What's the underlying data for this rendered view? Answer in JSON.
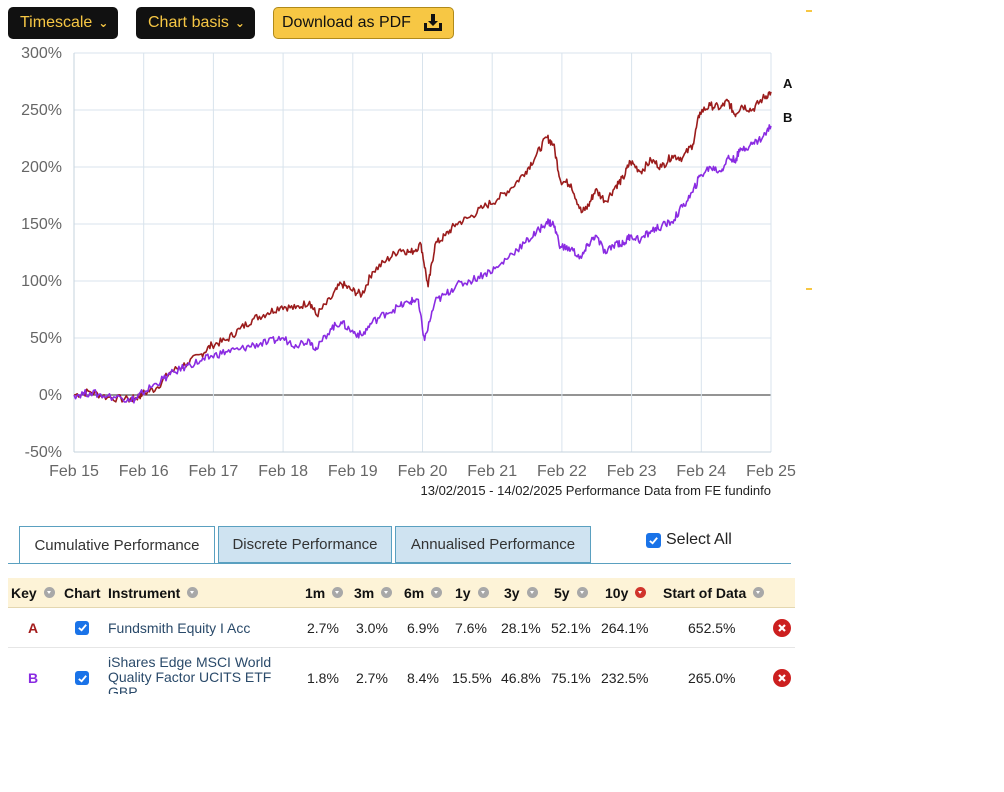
{
  "toolbar": {
    "timescale_label": "Timescale",
    "chart_basis_label": "Chart basis",
    "download_label": "Download as PDF"
  },
  "chart_data": {
    "type": "line",
    "x_ticks": [
      "Feb 15",
      "Feb 16",
      "Feb 17",
      "Feb 18",
      "Feb 19",
      "Feb 20",
      "Feb 21",
      "Feb 22",
      "Feb 23",
      "Feb 24",
      "Feb 25"
    ],
    "y_ticks": [
      "300%",
      "250%",
      "200%",
      "150%",
      "100%",
      "50%",
      "0%",
      "-50%"
    ],
    "ylim": [
      -50,
      300
    ],
    "xlim": [
      2015.12,
      2025.12
    ],
    "footnote": "13/02/2015 - 14/02/2025 Performance Data from FE fundinfo",
    "series": [
      {
        "key": "A",
        "color": "#9b1c1c",
        "points": [
          [
            2015.12,
            0
          ],
          [
            2015.35,
            3
          ],
          [
            2015.6,
            -2
          ],
          [
            2015.9,
            -4
          ],
          [
            2016.0,
            -3
          ],
          [
            2016.1,
            1
          ],
          [
            2016.3,
            6
          ],
          [
            2016.5,
            20
          ],
          [
            2016.75,
            28
          ],
          [
            2016.95,
            36
          ],
          [
            2017.1,
            44
          ],
          [
            2017.3,
            48
          ],
          [
            2017.5,
            58
          ],
          [
            2017.7,
            67
          ],
          [
            2017.9,
            72
          ],
          [
            2018.1,
            78
          ],
          [
            2018.3,
            76
          ],
          [
            2018.5,
            82
          ],
          [
            2018.6,
            70
          ],
          [
            2018.8,
            84
          ],
          [
            2018.95,
            98
          ],
          [
            2019.1,
            92
          ],
          [
            2019.25,
            88
          ],
          [
            2019.4,
            108
          ],
          [
            2019.6,
            118
          ],
          [
            2019.8,
            128
          ],
          [
            2019.95,
            125
          ],
          [
            2020.1,
            132
          ],
          [
            2020.2,
            95
          ],
          [
            2020.3,
            132
          ],
          [
            2020.45,
            140
          ],
          [
            2020.6,
            150
          ],
          [
            2020.8,
            156
          ],
          [
            2021.0,
            165
          ],
          [
            2021.2,
            172
          ],
          [
            2021.4,
            182
          ],
          [
            2021.6,
            196
          ],
          [
            2021.75,
            210
          ],
          [
            2021.9,
            226
          ],
          [
            2022.0,
            220
          ],
          [
            2022.1,
            188
          ],
          [
            2022.25,
            185
          ],
          [
            2022.4,
            160
          ],
          [
            2022.5,
            166
          ],
          [
            2022.6,
            180
          ],
          [
            2022.75,
            170
          ],
          [
            2022.9,
            184
          ],
          [
            2023.0,
            190
          ],
          [
            2023.1,
            205
          ],
          [
            2023.25,
            196
          ],
          [
            2023.4,
            206
          ],
          [
            2023.55,
            200
          ],
          [
            2023.7,
            210
          ],
          [
            2023.85,
            208
          ],
          [
            2024.0,
            220
          ],
          [
            2024.1,
            248
          ],
          [
            2024.25,
            254
          ],
          [
            2024.4,
            252
          ],
          [
            2024.5,
            258
          ],
          [
            2024.6,
            246
          ],
          [
            2024.7,
            254
          ],
          [
            2024.85,
            250
          ],
          [
            2025.0,
            260
          ],
          [
            2025.12,
            266
          ]
        ]
      },
      {
        "key": "B",
        "color": "#8a2be2",
        "points": [
          [
            2015.12,
            0
          ],
          [
            2015.35,
            2
          ],
          [
            2015.6,
            -1
          ],
          [
            2015.9,
            -3
          ],
          [
            2016.0,
            -4
          ],
          [
            2016.1,
            2
          ],
          [
            2016.3,
            10
          ],
          [
            2016.5,
            18
          ],
          [
            2016.75,
            26
          ],
          [
            2016.95,
            30
          ],
          [
            2017.1,
            34
          ],
          [
            2017.3,
            38
          ],
          [
            2017.5,
            40
          ],
          [
            2017.7,
            44
          ],
          [
            2017.9,
            46
          ],
          [
            2018.1,
            50
          ],
          [
            2018.3,
            44
          ],
          [
            2018.5,
            48
          ],
          [
            2018.6,
            40
          ],
          [
            2018.8,
            58
          ],
          [
            2018.95,
            64
          ],
          [
            2019.1,
            56
          ],
          [
            2019.25,
            52
          ],
          [
            2019.4,
            64
          ],
          [
            2019.6,
            72
          ],
          [
            2019.8,
            78
          ],
          [
            2019.95,
            82
          ],
          [
            2020.05,
            84
          ],
          [
            2020.15,
            48
          ],
          [
            2020.3,
            82
          ],
          [
            2020.45,
            88
          ],
          [
            2020.6,
            96
          ],
          [
            2020.8,
            100
          ],
          [
            2021.0,
            106
          ],
          [
            2021.2,
            112
          ],
          [
            2021.4,
            124
          ],
          [
            2021.6,
            134
          ],
          [
            2021.75,
            142
          ],
          [
            2021.9,
            152
          ],
          [
            2022.0,
            150
          ],
          [
            2022.1,
            130
          ],
          [
            2022.25,
            128
          ],
          [
            2022.4,
            120
          ],
          [
            2022.5,
            132
          ],
          [
            2022.6,
            140
          ],
          [
            2022.75,
            124
          ],
          [
            2022.9,
            134
          ],
          [
            2023.0,
            132
          ],
          [
            2023.1,
            140
          ],
          [
            2023.25,
            136
          ],
          [
            2023.4,
            144
          ],
          [
            2023.55,
            148
          ],
          [
            2023.7,
            152
          ],
          [
            2023.85,
            165
          ],
          [
            2024.0,
            178
          ],
          [
            2024.1,
            192
          ],
          [
            2024.25,
            200
          ],
          [
            2024.4,
            196
          ],
          [
            2024.5,
            208
          ],
          [
            2024.6,
            206
          ],
          [
            2024.7,
            216
          ],
          [
            2024.85,
            220
          ],
          [
            2025.0,
            226
          ],
          [
            2025.12,
            236
          ]
        ]
      }
    ]
  },
  "tabs": [
    {
      "label": "Cumulative Performance",
      "active": true
    },
    {
      "label": "Discrete Performance",
      "active": false
    },
    {
      "label": "Annualised Performance",
      "active": false
    }
  ],
  "select_all_label": "Select All",
  "table": {
    "headers": {
      "key": "Key",
      "chart": "Chart",
      "instrument": "Instrument",
      "m1": "1m",
      "m3": "3m",
      "m6": "6m",
      "y1": "1y",
      "y3": "3y",
      "y5": "5y",
      "y10": "10y",
      "start": "Start of Data"
    },
    "rows": [
      {
        "key": "A",
        "instrument": "Fundsmith Equity I Acc",
        "m1": "2.7%",
        "m3": "3.0%",
        "m6": "6.9%",
        "y1": "7.6%",
        "y3": "28.1%",
        "y5": "52.1%",
        "y10": "264.1%",
        "start": "652.5%"
      },
      {
        "key": "B",
        "instrument_line1": "iShares Edge MSCI World",
        "instrument_line2": "Quality Factor UCITS ETF",
        "instrument_line3": "GBP",
        "m1": "1.8%",
        "m3": "2.7%",
        "m6": "8.4%",
        "y1": "15.5%",
        "y3": "46.8%",
        "y5": "75.1%",
        "y10": "232.5%",
        "start": "265.0%"
      }
    ]
  }
}
